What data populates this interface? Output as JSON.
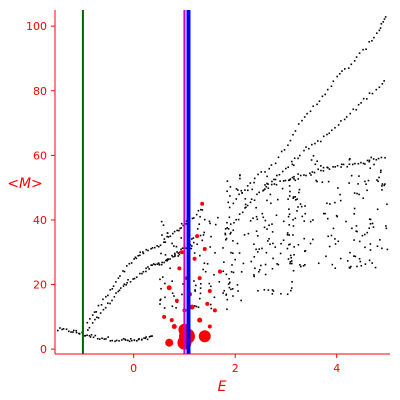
{
  "chart_data": {
    "type": "scatter",
    "title": "",
    "xlabel": "E",
    "ylabel": "<M>",
    "xlim": [
      -1.55,
      5.05
    ],
    "ylim": [
      -1.5,
      105
    ],
    "x_ticks": [
      0,
      2,
      4
    ],
    "y_ticks": [
      0,
      20,
      40,
      60,
      80,
      100
    ],
    "grid": false,
    "colors": {
      "axis": "#ff0000",
      "black_points": "#000000",
      "red_points": "#ff0000",
      "line_green": "#006400",
      "line_magenta": "#cc00cc",
      "line_blue": "#0000ff"
    },
    "vertical_lines": [
      {
        "name": "",
        "x": -1.0,
        "color": "#006400",
        "width": 2
      },
      {
        "name": "",
        "x": 1.0,
        "color": "#cc00cc",
        "width": 2
      },
      {
        "name": "",
        "x": 1.08,
        "color": "#0000ff",
        "width": 4
      }
    ],
    "band_curves": [
      {
        "points": [
          [
            -1.5,
            6
          ],
          [
            -1.2,
            5.6
          ],
          [
            -1.0,
            4.6
          ],
          [
            -0.8,
            3.9
          ],
          [
            -0.5,
            3.2
          ],
          [
            -0.2,
            2.8
          ],
          [
            0.0,
            2.6
          ],
          [
            0.2,
            3.0
          ],
          [
            0.4,
            3.8
          ]
        ]
      },
      {
        "points": [
          [
            -0.9,
            6
          ],
          [
            -0.6,
            12
          ],
          [
            -0.3,
            18
          ],
          [
            -0.1,
            21
          ],
          [
            0.2,
            24
          ],
          [
            0.4,
            26
          ],
          [
            0.6,
            27
          ],
          [
            0.8,
            29
          ],
          [
            1.0,
            31
          ],
          [
            1.2,
            33
          ]
        ]
      },
      {
        "points": [
          [
            -0.9,
            8
          ],
          [
            -0.6,
            15
          ],
          [
            -0.3,
            22
          ],
          [
            0.0,
            28
          ],
          [
            0.2,
            30
          ],
          [
            0.5,
            32
          ],
          [
            0.8,
            36
          ],
          [
            1.1,
            40
          ],
          [
            1.4,
            44
          ]
        ]
      },
      {
        "points": [
          [
            1.8,
            36
          ],
          [
            2.2,
            44
          ],
          [
            2.6,
            50
          ],
          [
            3.0,
            56
          ],
          [
            3.4,
            62
          ],
          [
            3.8,
            66
          ],
          [
            4.2,
            72
          ],
          [
            4.6,
            78
          ],
          [
            5.0,
            84
          ]
        ]
      },
      {
        "points": [
          [
            1.9,
            44
          ],
          [
            2.3,
            52
          ],
          [
            2.8,
            58
          ],
          [
            3.2,
            68
          ],
          [
            3.6,
            76
          ],
          [
            4.0,
            84
          ],
          [
            4.4,
            90
          ],
          [
            4.8,
            98
          ],
          [
            5.0,
            104
          ]
        ]
      },
      {
        "points": [
          [
            2.6,
            50
          ],
          [
            3.0,
            52
          ],
          [
            3.4,
            54
          ],
          [
            3.8,
            56
          ],
          [
            4.2,
            57
          ],
          [
            4.6,
            58
          ],
          [
            5.0,
            60
          ]
        ]
      }
    ],
    "cloud_regions": [
      {
        "x": [
          0.5,
          2.0
        ],
        "y": [
          12,
          42
        ],
        "n": 110
      },
      {
        "x": [
          1.8,
          3.2
        ],
        "y": [
          15,
          55
        ],
        "n": 130
      },
      {
        "x": [
          3.0,
          5.0
        ],
        "y": [
          25,
          60
        ],
        "n": 150
      }
    ],
    "red_points": [
      {
        "x": 0.7,
        "y": 2,
        "size": 4
      },
      {
        "x": 1.0,
        "y": 2,
        "size": 7
      },
      {
        "x": 1.05,
        "y": 4,
        "size": 8
      },
      {
        "x": 1.0,
        "y": 6,
        "size": 6
      },
      {
        "x": 1.4,
        "y": 4,
        "size": 6
      },
      {
        "x": 0.8,
        "y": 7,
        "size": 2.5
      },
      {
        "x": 1.3,
        "y": 9,
        "size": 2.5
      },
      {
        "x": 0.7,
        "y": 19,
        "size": 2.5
      },
      {
        "x": 1.1,
        "y": 17,
        "size": 2.5
      },
      {
        "x": 1.5,
        "y": 7,
        "size": 2
      },
      {
        "x": 1.3,
        "y": 22,
        "size": 2
      },
      {
        "x": 1.0,
        "y": 12,
        "size": 2
      },
      {
        "x": 0.9,
        "y": 25,
        "size": 2
      },
      {
        "x": 1.2,
        "y": 28,
        "size": 2
      },
      {
        "x": 1.5,
        "y": 18,
        "size": 2
      },
      {
        "x": 0.6,
        "y": 10,
        "size": 2
      },
      {
        "x": 1.6,
        "y": 12,
        "size": 2
      },
      {
        "x": 1.4,
        "y": 31,
        "size": 2
      },
      {
        "x": 1.05,
        "y": 22,
        "size": 2
      },
      {
        "x": 0.85,
        "y": 15,
        "size": 2
      },
      {
        "x": 1.25,
        "y": 35,
        "size": 2
      },
      {
        "x": 1.7,
        "y": 24,
        "size": 2
      },
      {
        "x": 1.35,
        "y": 45,
        "size": 2
      },
      {
        "x": 0.95,
        "y": 30,
        "size": 2
      },
      {
        "x": 1.45,
        "y": 14,
        "size": 2
      },
      {
        "x": 0.75,
        "y": 9,
        "size": 2
      },
      {
        "x": 1.15,
        "y": 13,
        "size": 2.5
      }
    ]
  }
}
